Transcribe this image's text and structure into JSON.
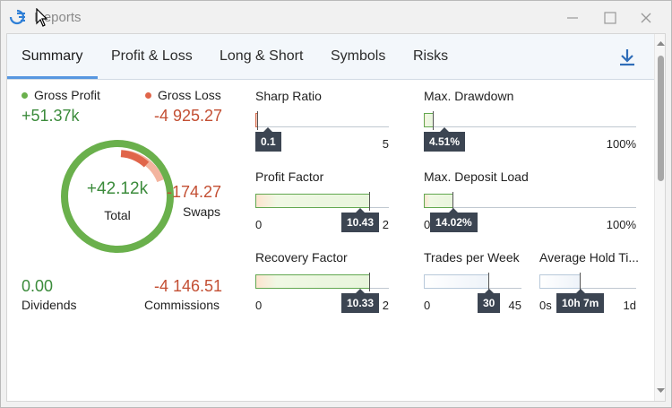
{
  "window": {
    "title": "Reports",
    "accent": "#5797e0"
  },
  "tabs": [
    {
      "label": "Summary",
      "active": true
    },
    {
      "label": "Profit & Loss",
      "active": false
    },
    {
      "label": "Long & Short",
      "active": false
    },
    {
      "label": "Symbols",
      "active": false
    },
    {
      "label": "Risks",
      "active": false
    }
  ],
  "summary": {
    "gross_profit": {
      "label": "Gross Profit",
      "value": "+51.37k",
      "color": "#6ab04c"
    },
    "gross_loss": {
      "label": "Gross Loss",
      "value": "-4 925.27",
      "color": "#e0654a"
    },
    "total": {
      "label": "Total",
      "value": "+42.12k"
    },
    "swaps": {
      "label": "Swaps",
      "value": "-174.27"
    },
    "dividends": {
      "label": "Dividends",
      "value": "0.00"
    },
    "commissions": {
      "label": "Commissions",
      "value": "-4 146.51"
    }
  },
  "metrics": {
    "sharp_ratio": {
      "title": "Sharp Ratio",
      "value_label": "0.1",
      "value": 0.1,
      "min_label": "",
      "max_label": "5",
      "max": 5
    },
    "max_drawdown": {
      "title": "Max. Drawdown",
      "value_label": "4.51%",
      "value": 4.51,
      "min_label": "",
      "max_label": "100%",
      "max": 100
    },
    "profit_factor": {
      "title": "Profit Factor",
      "value_label": "10.43",
      "value": 10.43,
      "min_label": "0",
      "max_label": "2"
    },
    "max_deposit_load": {
      "title": "Max. Deposit Load",
      "value_label": "14.02%",
      "value": 14.02,
      "min_label": "0",
      "max_label": "100%",
      "max": 100
    },
    "recovery_factor": {
      "title": "Recovery Factor",
      "value_label": "10.33",
      "value": 10.33,
      "min_label": "0",
      "max_label": "2"
    },
    "trades_per_week": {
      "title": "Trades per Week",
      "value_label": "30",
      "value": 30,
      "min_label": "0",
      "max_label": "45",
      "max": 45
    },
    "avg_hold_time": {
      "title": "Average Hold Ti...",
      "value_label": "10h 7m",
      "min_label": "0s",
      "max_label": "1d"
    }
  }
}
